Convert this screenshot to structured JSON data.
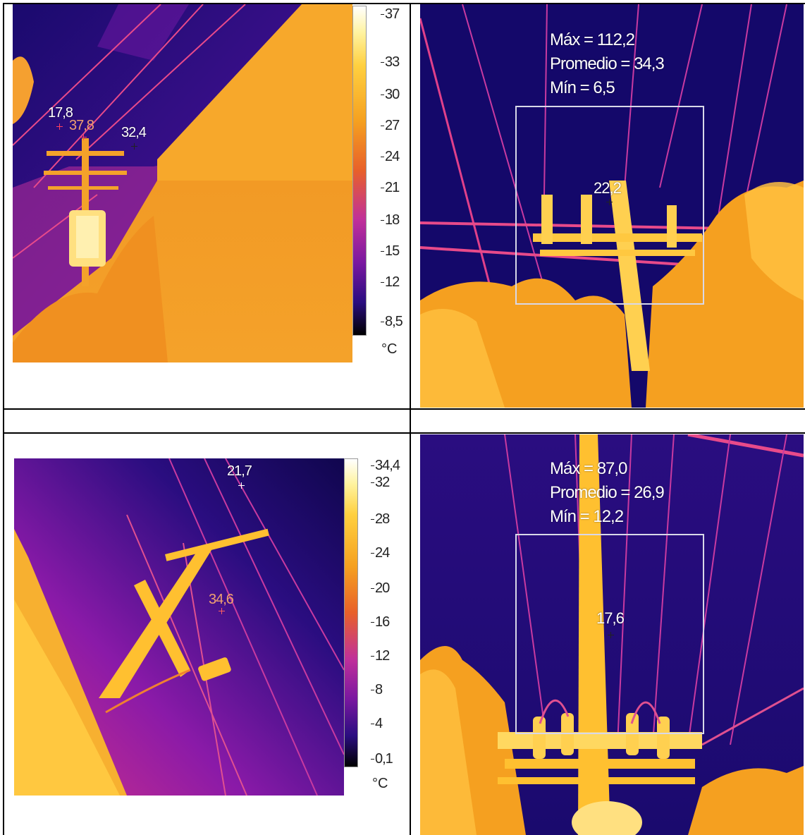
{
  "panels": {
    "top_left": {
      "spot_labels": [
        "17,8",
        "37,8",
        "32,4"
      ],
      "scale_ticks": [
        "37",
        "33",
        "30",
        "27",
        "24",
        "21",
        "18",
        "15",
        "12",
        "8,5"
      ],
      "unit": "°C"
    },
    "top_right": {
      "stats": [
        "Máx = 112,2",
        "Promedio = 34,3",
        "Mín = 6,5"
      ],
      "spot_label": "22,2"
    },
    "bottom_left": {
      "spot_labels": [
        "21,7",
        "34,6"
      ],
      "scale_ticks": [
        "34,4",
        "32",
        "28",
        "24",
        "20",
        "16",
        "12",
        "8",
        "4",
        "0,1"
      ],
      "unit": "°C"
    },
    "bottom_right": {
      "stats": [
        "Máx = 87,0",
        "Promedio = 26,9",
        "Mín = 12,2"
      ],
      "spot_label": "17,6"
    }
  },
  "colors": {
    "sky_cold": "#1a0a6e",
    "mid_purple": "#8a1aa8",
    "hot_orange": "#f5a020",
    "hot_yellow": "#ffd040",
    "white_hot": "#fff4c0"
  }
}
